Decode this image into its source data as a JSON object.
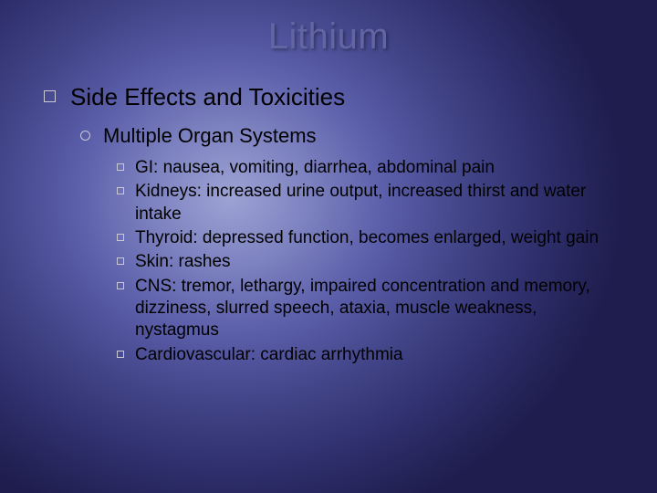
{
  "slide": {
    "title": "Lithium",
    "title_color": "#6265a3",
    "title_fontsize": 40,
    "background": {
      "type": "radial-gradient",
      "center": "35% 40%",
      "stops": [
        "#9da3d4",
        "#7d82c0",
        "#5a5da8",
        "#414487",
        "#2e2e6b",
        "#1e1d4d"
      ]
    },
    "text_color": "#000000",
    "bullet_border_color": "#c9c9d6",
    "level1": {
      "text": "Side Effects and Toxicities",
      "fontsize": 26,
      "bullet_shape": "square-outline"
    },
    "level2": {
      "text": "Multiple Organ Systems",
      "fontsize": 22,
      "bullet_shape": "circle-outline"
    },
    "level3": {
      "fontsize": 19,
      "bullet_shape": "square-outline",
      "items": [
        "GI: nausea, vomiting, diarrhea, abdominal pain",
        "Kidneys: increased urine output, increased thirst and water intake",
        "Thyroid: depressed function, becomes enlarged, weight gain",
        "Skin: rashes",
        "CNS: tremor, lethargy, impaired concentration and memory, dizziness, slurred speech, ataxia, muscle weakness, nystagmus",
        "Cardiovascular: cardiac arrhythmia"
      ]
    }
  }
}
